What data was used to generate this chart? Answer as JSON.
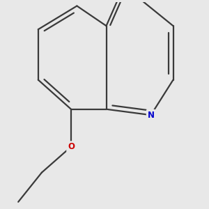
{
  "background_color": "#e8e8e8",
  "bond_color": "#3a3a3a",
  "nitrogen_color": "#0000cc",
  "oxygen_color": "#cc0000",
  "line_width": 1.6,
  "figsize": [
    3.0,
    3.0
  ],
  "dpi": 100
}
